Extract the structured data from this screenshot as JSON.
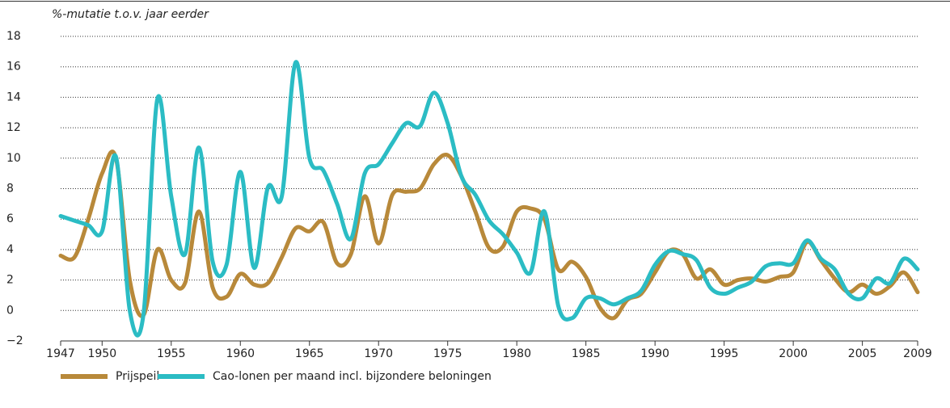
{
  "chart_data": {
    "type": "line",
    "y_label": "%-mutatie t.o.v. jaar eerder",
    "x": [
      1947,
      1948,
      1949,
      1950,
      1951,
      1952,
      1953,
      1954,
      1955,
      1956,
      1957,
      1958,
      1959,
      1960,
      1961,
      1962,
      1963,
      1964,
      1965,
      1966,
      1967,
      1968,
      1969,
      1970,
      1971,
      1972,
      1973,
      1974,
      1975,
      1976,
      1977,
      1978,
      1979,
      1980,
      1981,
      1982,
      1983,
      1984,
      1985,
      1986,
      1987,
      1988,
      1989,
      1990,
      1991,
      1992,
      1993,
      1994,
      1995,
      1996,
      1997,
      1998,
      1999,
      2000,
      2001,
      2002,
      2003,
      2004,
      2005,
      2006,
      2007,
      2008,
      2009
    ],
    "series": [
      {
        "name": "Prijspeil",
        "color": "#b8893a",
        "values": [
          3.6,
          3.5,
          6.0,
          9.0,
          10.0,
          2.0,
          -0.3,
          4.0,
          2.0,
          1.8,
          6.5,
          1.5,
          0.9,
          2.4,
          1.7,
          1.8,
          3.5,
          5.4,
          5.2,
          5.8,
          3.1,
          3.7,
          7.5,
          4.4,
          7.6,
          7.8,
          8.0,
          9.6,
          10.2,
          8.8,
          6.5,
          4.1,
          4.2,
          6.5,
          6.7,
          6.0,
          2.7,
          3.2,
          2.2,
          0.2,
          -0.5,
          0.7,
          1.1,
          2.5,
          3.9,
          3.7,
          2.1,
          2.7,
          1.7,
          2.0,
          2.1,
          1.9,
          2.2,
          2.5,
          4.5,
          3.3,
          2.1,
          1.2,
          1.7,
          1.1,
          1.6,
          2.5,
          1.2
        ]
      },
      {
        "name": "Cao-lonen per maand incl. bijzondere beloningen",
        "color": "#2bbcc4",
        "values": [
          6.2,
          5.9,
          5.6,
          5.2,
          10.1,
          0.0,
          -0.2,
          13.9,
          7.5,
          3.7,
          10.7,
          3.2,
          3.0,
          9.1,
          2.8,
          8.1,
          7.5,
          16.3,
          10.0,
          9.2,
          7.0,
          4.7,
          9.0,
          9.6,
          11.0,
          12.3,
          12.1,
          14.3,
          12.3,
          8.8,
          7.6,
          5.9,
          5.0,
          3.8,
          2.5,
          6.5,
          0.3,
          -0.5,
          0.8,
          0.8,
          0.4,
          0.8,
          1.3,
          3.0,
          3.9,
          3.7,
          3.3,
          1.5,
          1.1,
          1.5,
          1.9,
          2.9,
          3.1,
          3.1,
          4.6,
          3.4,
          2.7,
          1.1,
          0.8,
          2.1,
          1.8,
          3.4,
          2.7
        ]
      }
    ],
    "xlim": [
      1947,
      2009
    ],
    "xticks": [
      1947,
      1950,
      1955,
      1960,
      1965,
      1970,
      1975,
      1980,
      1985,
      1990,
      1995,
      2000,
      2005,
      2009
    ],
    "ylim": [
      -2,
      18
    ],
    "yticks": [
      {
        "value": -2,
        "label": "−2"
      },
      0,
      2,
      4,
      6,
      8,
      10,
      12,
      14,
      16,
      18
    ],
    "grid": true
  }
}
